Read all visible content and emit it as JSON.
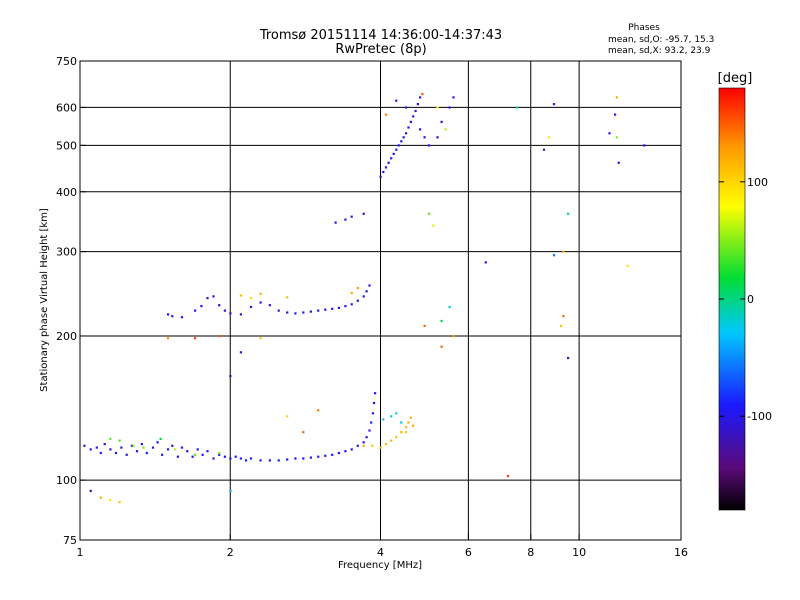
{
  "chart_data": {
    "type": "scatter",
    "title": "Tromsø 20151114 14:36:00-14:37:43",
    "subtitle": "RwPretec (8p)",
    "xlabel": "Frequency [MHz]",
    "ylabel": "Stationary phase Virtual Height [km]",
    "x_scale": "log",
    "y_scale": "log",
    "xlim": [
      1,
      16
    ],
    "ylim": [
      75,
      750
    ],
    "x_ticks": [
      1,
      2,
      4,
      6,
      8,
      10,
      16
    ],
    "x_tick_labels": [
      "1",
      "2",
      "4",
      "6",
      "8",
      "10",
      "16"
    ],
    "x_gridlines": [
      1,
      2,
      4,
      6,
      8,
      10,
      16
    ],
    "y_ticks": [
      75,
      100,
      200,
      300,
      400,
      500,
      600,
      750
    ],
    "y_tick_labels": [
      "75",
      "100",
      "200",
      "300",
      "400",
      "500",
      "600",
      "750"
    ],
    "y_gridlines": [
      100,
      200,
      300,
      400,
      500,
      600
    ],
    "grid": true,
    "stats": {
      "heading": "Phases",
      "line1": "mean, sd,O: -95.7, 15.3",
      "line2": "mean, sd,X:  93.2, 23.9"
    },
    "colorbar": {
      "label": "[deg]",
      "range": [
        -180,
        180
      ],
      "ticks": [
        100,
        0,
        -100
      ],
      "tick_labels": [
        "100",
        "0",
        "-100"
      ]
    },
    "series": [
      {
        "values_format": "[frequency_MHz, virtual_height_km, phase_deg]",
        "points": [
          [
            1.02,
            118,
            -100
          ],
          [
            1.05,
            116,
            -95
          ],
          [
            1.08,
            117,
            -102
          ],
          [
            1.1,
            114,
            -90
          ],
          [
            1.12,
            119,
            -105
          ],
          [
            1.15,
            116,
            -98
          ],
          [
            1.18,
            114,
            -92
          ],
          [
            1.21,
            117,
            -100
          ],
          [
            1.24,
            113,
            -95
          ],
          [
            1.27,
            118,
            -88
          ],
          [
            1.3,
            115,
            -102
          ],
          [
            1.33,
            119,
            -96
          ],
          [
            1.36,
            114,
            -90
          ],
          [
            1.4,
            117,
            -104
          ],
          [
            1.43,
            120,
            -97
          ],
          [
            1.46,
            113,
            -93
          ],
          [
            1.5,
            116,
            -101
          ],
          [
            1.53,
            118,
            -95
          ],
          [
            1.57,
            112,
            -99
          ],
          [
            1.6,
            117,
            -92
          ],
          [
            1.64,
            115,
            -103
          ],
          [
            1.68,
            112,
            -96
          ],
          [
            1.72,
            116,
            -90
          ],
          [
            1.76,
            113,
            -100
          ],
          [
            1.8,
            115,
            -94
          ],
          [
            1.85,
            111,
            -98
          ],
          [
            1.9,
            113,
            -92
          ],
          [
            1.95,
            112,
            -100
          ],
          [
            2.0,
            111,
            -95
          ],
          [
            2.05,
            112,
            -103
          ],
          [
            2.1,
            111,
            -97
          ],
          [
            2.15,
            110,
            -92
          ],
          [
            2.2,
            111,
            -99
          ],
          [
            2.3,
            110,
            -95
          ],
          [
            2.4,
            110,
            -101
          ],
          [
            2.5,
            110,
            -96
          ],
          [
            2.6,
            110.5,
            -93
          ],
          [
            2.7,
            111,
            -100
          ],
          [
            2.8,
            111,
            -95
          ],
          [
            2.9,
            111.5,
            -98
          ],
          [
            3.0,
            112,
            -96
          ],
          [
            3.1,
            112.5,
            -100
          ],
          [
            3.2,
            113,
            -94
          ],
          [
            3.3,
            114,
            -99
          ],
          [
            3.4,
            115,
            -95
          ],
          [
            3.5,
            116,
            -98
          ],
          [
            3.6,
            118,
            -93
          ],
          [
            3.7,
            120,
            -97
          ],
          [
            3.75,
            123,
            -100
          ],
          [
            3.8,
            127,
            -95
          ],
          [
            3.83,
            132,
            -96
          ],
          [
            3.86,
            138,
            -92
          ],
          [
            3.88,
            145,
            -98
          ],
          [
            3.9,
            152,
            -94
          ],
          [
            1.15,
            122,
            40
          ],
          [
            1.2,
            121,
            35
          ],
          [
            1.28,
            118,
            55
          ],
          [
            1.34,
            117,
            45
          ],
          [
            1.45,
            122,
            20
          ],
          [
            1.55,
            116,
            60
          ],
          [
            1.7,
            113,
            40
          ],
          [
            1.9,
            114,
            50
          ],
          [
            3.7,
            118,
            120
          ],
          [
            3.85,
            118,
            110
          ],
          [
            4.0,
            117,
            115
          ],
          [
            4.1,
            119,
            112
          ],
          [
            4.2,
            121,
            118
          ],
          [
            4.3,
            123,
            110
          ],
          [
            4.4,
            126,
            116
          ],
          [
            4.5,
            129,
            112
          ],
          [
            4.55,
            132,
            118
          ],
          [
            4.6,
            135,
            114
          ],
          [
            4.65,
            130,
            120
          ],
          [
            4.5,
            126,
            108
          ],
          [
            4.05,
            134,
            -30
          ],
          [
            4.2,
            136,
            -20
          ],
          [
            4.3,
            138,
            -25
          ],
          [
            4.4,
            132,
            -15
          ],
          [
            1.5,
            222,
            -95
          ],
          [
            1.53,
            220,
            -100
          ],
          [
            1.6,
            219,
            -92
          ],
          [
            1.7,
            226,
            -96
          ],
          [
            1.75,
            231,
            -90
          ],
          [
            1.8,
            240,
            -98
          ],
          [
            1.85,
            242,
            -94
          ],
          [
            1.9,
            232,
            -100
          ],
          [
            1.95,
            226,
            -95
          ],
          [
            2.0,
            223,
            -99
          ],
          [
            2.1,
            222,
            -95
          ],
          [
            2.2,
            230,
            -100
          ],
          [
            2.3,
            235,
            -93
          ],
          [
            2.4,
            232,
            -97
          ],
          [
            2.5,
            226,
            -95
          ],
          [
            2.6,
            224,
            -100
          ],
          [
            2.7,
            223,
            -96
          ],
          [
            2.8,
            224,
            -101
          ],
          [
            2.9,
            225,
            -95
          ],
          [
            3.0,
            226,
            -99
          ],
          [
            3.1,
            227,
            -94
          ],
          [
            3.2,
            228,
            -100
          ],
          [
            3.3,
            229,
            -96
          ],
          [
            3.4,
            231,
            -101
          ],
          [
            3.5,
            233,
            -95
          ],
          [
            3.6,
            237,
            -98
          ],
          [
            3.7,
            242,
            -93
          ],
          [
            3.75,
            248,
            -97
          ],
          [
            3.8,
            255,
            -100
          ],
          [
            2.1,
            243,
            115
          ],
          [
            2.3,
            245,
            120
          ],
          [
            2.6,
            241,
            110
          ],
          [
            3.5,
            246,
            125
          ],
          [
            3.6,
            252,
            130
          ],
          [
            2.2,
            240,
            95
          ],
          [
            3.4,
            350,
            -100
          ],
          [
            3.5,
            355,
            -95
          ],
          [
            3.25,
            345,
            -90
          ],
          [
            3.7,
            360,
            -98
          ],
          [
            4.0,
            430,
            -100
          ],
          [
            4.05,
            440,
            -95
          ],
          [
            4.1,
            450,
            -105
          ],
          [
            4.15,
            460,
            -98
          ],
          [
            4.2,
            470,
            -102
          ],
          [
            4.25,
            480,
            -96
          ],
          [
            4.3,
            490,
            -100
          ],
          [
            4.35,
            500,
            -94
          ],
          [
            4.4,
            510,
            -101
          ],
          [
            4.45,
            520,
            -97
          ],
          [
            4.5,
            530,
            -99
          ],
          [
            4.55,
            545,
            -95
          ],
          [
            4.6,
            560,
            -102
          ],
          [
            4.65,
            575,
            -98
          ],
          [
            4.7,
            590,
            -100
          ],
          [
            4.75,
            610,
            -96
          ],
          [
            4.8,
            630,
            -103
          ],
          [
            4.3,
            620,
            -100
          ],
          [
            4.5,
            600,
            -95
          ],
          [
            5.3,
            560,
            -100
          ],
          [
            5.5,
            600,
            -98
          ],
          [
            5.6,
            630,
            -95
          ],
          [
            5.2,
            520,
            -102
          ],
          [
            5.0,
            500,
            -96
          ],
          [
            4.9,
            520,
            -100
          ],
          [
            4.8,
            540,
            -94
          ],
          [
            4.85,
            640,
            150
          ],
          [
            5.2,
            600,
            80
          ],
          [
            5.4,
            540,
            60
          ],
          [
            4.1,
            580,
            140
          ],
          [
            7.5,
            600,
            -10
          ],
          [
            8.5,
            490,
            -110
          ],
          [
            8.9,
            610,
            -100
          ],
          [
            8.7,
            520,
            90
          ],
          [
            11.5,
            530,
            -100
          ],
          [
            11.8,
            580,
            -95
          ],
          [
            12.0,
            460,
            -100
          ],
          [
            11.9,
            520,
            50
          ],
          [
            13.5,
            500,
            -100
          ],
          [
            11.9,
            630,
            120
          ],
          [
            8.9,
            295,
            -60
          ],
          [
            9.3,
            300,
            120
          ],
          [
            12.5,
            280,
            90
          ],
          [
            9.5,
            360,
            -5
          ],
          [
            9.3,
            220,
            150
          ],
          [
            9.2,
            210,
            110
          ],
          [
            9.5,
            180,
            -110
          ],
          [
            7.2,
            102,
            160
          ],
          [
            6.5,
            285,
            -100
          ],
          [
            5.3,
            215,
            10
          ],
          [
            5.5,
            230,
            -20
          ],
          [
            5.6,
            200,
            130
          ],
          [
            5.3,
            190,
            150
          ],
          [
            4.9,
            210,
            150
          ],
          [
            5.0,
            360,
            40
          ],
          [
            5.1,
            340,
            70
          ],
          [
            1.05,
            95,
            -130
          ],
          [
            1.1,
            92,
            120
          ],
          [
            1.15,
            91,
            90
          ],
          [
            1.2,
            90,
            110
          ],
          [
            2.0,
            95,
            -40
          ],
          [
            1.5,
            198,
            130
          ],
          [
            1.7,
            198,
            160
          ],
          [
            1.9,
            200,
            150
          ],
          [
            2.3,
            198,
            110
          ],
          [
            2.1,
            185,
            -100
          ],
          [
            2.0,
            165,
            -110
          ],
          [
            3.0,
            140,
            140
          ],
          [
            2.6,
            136,
            100
          ],
          [
            2.8,
            126,
            150
          ]
        ]
      }
    ]
  }
}
